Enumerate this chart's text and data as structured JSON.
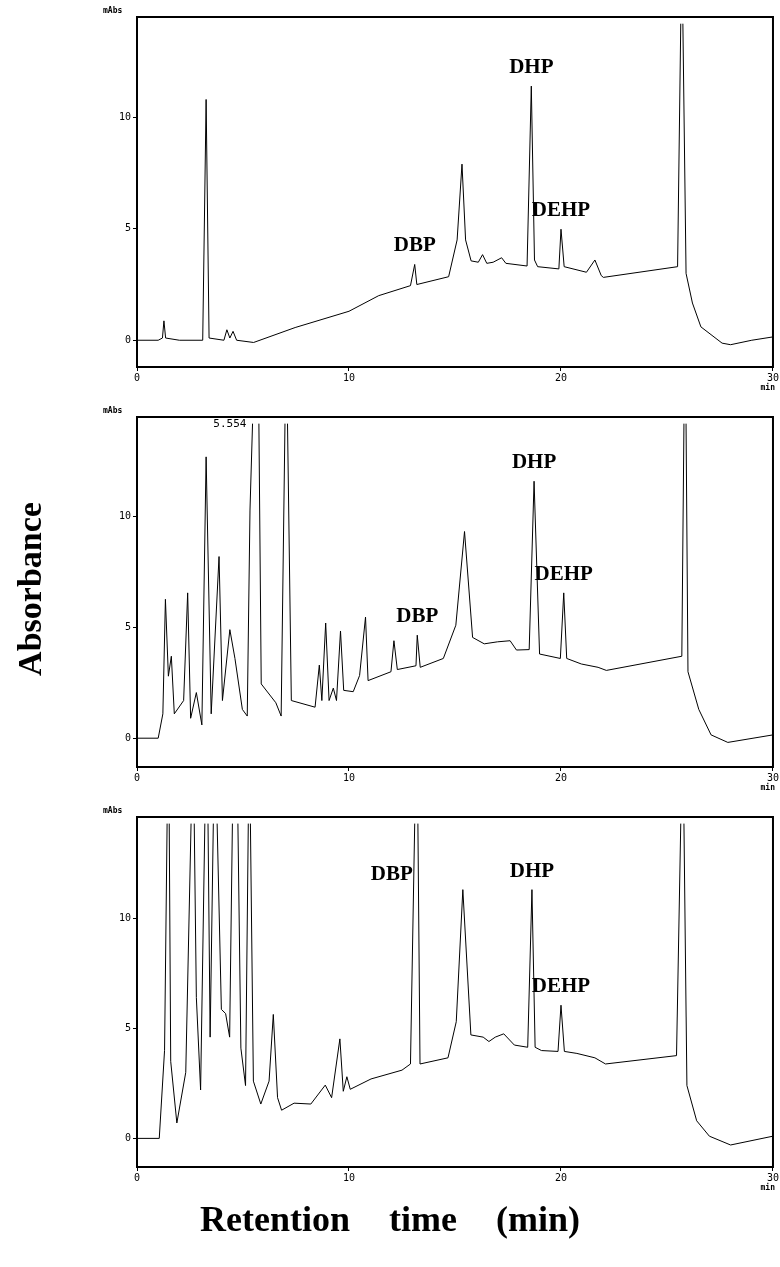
{
  "chart_data": [
    {
      "type": "line",
      "ylabel": "mAbs",
      "xlabel": "min",
      "xlim": [
        0,
        30
      ],
      "xticks": [
        0,
        10,
        20,
        30
      ],
      "ylim": [
        -1.2,
        14.5
      ],
      "yticks": [
        0,
        5,
        10
      ],
      "marker": "none",
      "series": [
        {
          "color": "#000000",
          "x": [
            0,
            1.0,
            1.2,
            1.27,
            1.35,
            2,
            3.1,
            3.26,
            3.4,
            4.1,
            4.24,
            4.38,
            4.53,
            4.7,
            5.5,
            7.46,
            10,
            11.4,
            12.9,
            13.1,
            13.2,
            14.7,
            15.1,
            15.33,
            15.5,
            15.76,
            16.1,
            16.3,
            16.5,
            16.8,
            17.2,
            17.4,
            18.4,
            18.6,
            18.75,
            18.9,
            19.9,
            20.0,
            20.15,
            21.2,
            21.6,
            21.9,
            22.0,
            25.5,
            25.65,
            25.7,
            25.75,
            25.9,
            26.2,
            26.6,
            27.6,
            28.0,
            29,
            30
          ],
          "values": [
            0,
            0,
            0.1,
            0.87,
            0.1,
            0,
            0,
            10.8,
            0.1,
            0,
            0.47,
            0.1,
            0.4,
            0,
            -0.1,
            0.57,
            1.3,
            2.0,
            2.45,
            3.4,
            2.5,
            2.85,
            4.5,
            7.9,
            4.5,
            3.56,
            3.5,
            3.84,
            3.45,
            3.5,
            3.7,
            3.45,
            3.33,
            11.4,
            3.6,
            3.3,
            3.2,
            4.98,
            3.3,
            3.05,
            3.6,
            2.9,
            2.82,
            3.3,
            14.2,
            null,
            14.2,
            3.0,
            1.67,
            0.6,
            -0.13,
            -0.2,
            0,
            0.15
          ]
        }
      ],
      "annotations": [
        {
          "text": "DBP",
          "x": 13.1,
          "y": 3.4
        },
        {
          "text": "DHP",
          "x": 18.6,
          "y": 11.4
        },
        {
          "text": "DEHP",
          "x": 20.0,
          "y": 4.98
        }
      ]
    },
    {
      "type": "line",
      "ylabel": "mAbs",
      "xlabel": "min",
      "xlim": [
        0,
        30
      ],
      "xticks": [
        0,
        10,
        20,
        30
      ],
      "ylim": [
        -1.3,
        14.5
      ],
      "yticks": [
        0,
        5,
        10
      ],
      "marker": "none",
      "series": [
        {
          "color": "#000000",
          "x": [
            0,
            1.0,
            1.22,
            1.34,
            1.48,
            1.62,
            1.76,
            2.2,
            2.39,
            2.53,
            2.8,
            3.06,
            3.26,
            3.5,
            3.87,
            4.03,
            4.38,
            4.62,
            4.97,
            5.2,
            5.33,
            5.45,
            5.6,
            5.75,
            5.86,
            6.55,
            6.8,
            6.98,
            7.04,
            7.1,
            7.28,
            8.4,
            8.6,
            8.72,
            8.9,
            9.06,
            9.26,
            9.41,
            9.6,
            9.75,
            10.2,
            10.5,
            10.78,
            10.9,
            11.98,
            12.12,
            12.28,
            13.16,
            13.22,
            13.36,
            14.45,
            15.04,
            15.45,
            15.83,
            16.38,
            17.0,
            17.6,
            17.9,
            18.5,
            18.73,
            18.99,
            19.97,
            20.13,
            20.27,
            20.96,
            21.75,
            22.14,
            25.7,
            25.8,
            25.85,
            25.9,
            25.99,
            26.5,
            27.08,
            27.87,
            30
          ],
          "values": [
            0,
            0,
            1.1,
            6.27,
            2.8,
            3.7,
            1.1,
            1.7,
            6.56,
            0.9,
            2.06,
            0.6,
            12.7,
            1.1,
            8.2,
            1.7,
            4.9,
            3.6,
            1.3,
            1.0,
            10.3,
            14.2,
            null,
            14.2,
            2.45,
            1.6,
            1.0,
            14.2,
            null,
            14.2,
            1.7,
            1.4,
            3.3,
            1.7,
            5.2,
            1.7,
            2.26,
            1.7,
            4.84,
            2.16,
            2.1,
            2.83,
            5.47,
            2.6,
            3.0,
            4.4,
            3.1,
            3.27,
            4.65,
            3.2,
            3.6,
            5.1,
            9.33,
            4.55,
            4.26,
            4.35,
            4.4,
            3.98,
            4.0,
            11.6,
            3.8,
            3.6,
            6.56,
            3.6,
            3.35,
            3.2,
            3.06,
            3.7,
            14.2,
            null,
            14.2,
            3.0,
            1.3,
            0.15,
            -0.19,
            0.15
          ]
        }
      ],
      "annotations": [
        "5.554",
        {
          "text": "DBP",
          "x": 13.22,
          "y": 4.65
        },
        {
          "text": "DHP",
          "x": 18.73,
          "y": 11.6
        },
        {
          "text": "DEHP",
          "x": 20.13,
          "y": 6.56
        },
        "Absorbance"
      ]
    },
    {
      "type": "line",
      "ylabel": "mAbs",
      "xlabel": "min",
      "xlim": [
        0,
        30
      ],
      "xticks": [
        0,
        10,
        20,
        30
      ],
      "ylim": [
        -1.3,
        14.6
      ],
      "yticks": [
        0,
        5,
        10
      ],
      "marker": "none",
      "series": [
        {
          "color": "#000000",
          "x": [
            0,
            1.05,
            1.3,
            1.42,
            1.47,
            1.52,
            1.59,
            1.88,
            2.3,
            2.55,
            2.62,
            2.7,
            2.8,
            3.0,
            3.2,
            3.28,
            3.35,
            3.45,
            3.6,
            3.69,
            3.78,
            3.98,
            4.18,
            4.37,
            4.5,
            4.62,
            4.76,
            4.9,
            5.12,
            5.25,
            5.3,
            5.35,
            5.49,
            5.84,
            6.23,
            6.43,
            6.63,
            6.82,
            7.41,
            8.2,
            8.88,
            9.18,
            9.57,
            9.73,
            9.9,
            10.06,
            11.04,
            12.5,
            12.9,
            13.1,
            13.18,
            13.25,
            13.35,
            14.67,
            15.06,
            15.37,
            15.75,
            16.33,
            16.6,
            16.9,
            17.3,
            17.8,
            18.43,
            18.63,
            18.78,
            19.08,
            19.86,
            20.0,
            20.16,
            20.75,
            21.6,
            22.1,
            25.45,
            25.65,
            25.72,
            25.8,
            25.94,
            26.4,
            27.0,
            28.0,
            30
          ],
          "values": [
            0,
            0,
            4,
            14.3,
            null,
            14.3,
            3.5,
            0.7,
            3,
            14.3,
            null,
            14.3,
            6.4,
            2.2,
            14.3,
            null,
            14.3,
            4.6,
            14.3,
            null,
            14.3,
            5.86,
            5.67,
            4.6,
            14.3,
            null,
            14.3,
            4.1,
            2.4,
            14.3,
            null,
            14.3,
            2.6,
            1.56,
            2.6,
            5.63,
            1.85,
            1.28,
            1.6,
            1.56,
            2.42,
            1.85,
            4.52,
            2.14,
            2.8,
            2.23,
            2.7,
            3.1,
            3.38,
            14.3,
            null,
            14.3,
            3.38,
            3.66,
            5.3,
            11.3,
            4.7,
            4.6,
            4.4,
            4.6,
            4.75,
            4.24,
            4.14,
            11.3,
            4.14,
            3.99,
            3.95,
            6.05,
            3.95,
            3.86,
            3.66,
            3.38,
            3.76,
            14.3,
            null,
            14.3,
            2.4,
            0.8,
            0.1,
            -0.3,
            0.1
          ]
        }
      ],
      "annotations": [
        {
          "text": "DBP",
          "x": 13.2,
          "y": 12
        },
        {
          "text": "DHP",
          "x": 18.63,
          "y": 11.3
        },
        {
          "text": "DEHP",
          "x": 20.0,
          "y": 6.05
        },
        "Retention time (min)"
      ]
    }
  ]
}
